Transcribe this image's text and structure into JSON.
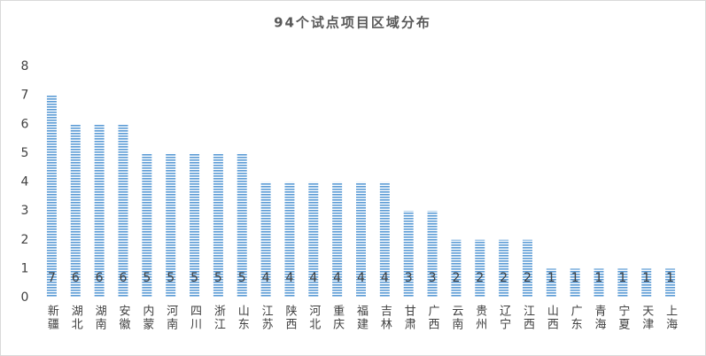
{
  "chart_data": {
    "type": "bar",
    "title": "94个试点项目区域分布",
    "categories": [
      "新疆",
      "湖北",
      "湖南",
      "安徽",
      "内蒙",
      "河南",
      "四川",
      "浙江",
      "山东",
      "江苏",
      "陕西",
      "河北",
      "重庆",
      "福建",
      "吉林",
      "甘肃",
      "广西",
      "云南",
      "贵州",
      "辽宁",
      "江西",
      "山西",
      "广东",
      "青海",
      "宁夏",
      "天津",
      "上海"
    ],
    "values": [
      7,
      6,
      6,
      6,
      5,
      5,
      5,
      5,
      5,
      4,
      4,
      4,
      4,
      4,
      4,
      3,
      3,
      2,
      2,
      2,
      2,
      1,
      1,
      1,
      1,
      1,
      1
    ],
    "color": "#5b9bd5",
    "ylim": [
      0,
      8
    ],
    "yticks": [
      0,
      1,
      2,
      3,
      4,
      5,
      6,
      7,
      8
    ],
    "grid": false
  }
}
